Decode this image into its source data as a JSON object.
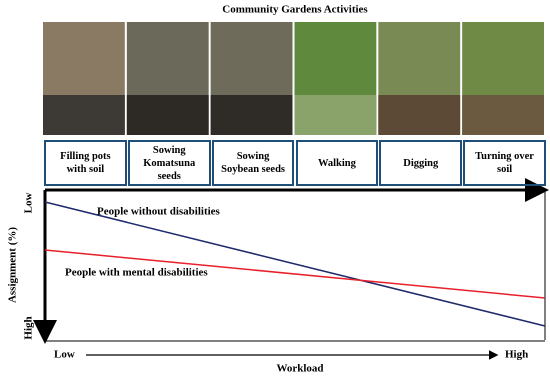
{
  "title": "Community Gardens Activities",
  "activities": [
    "Filling pots with soil",
    "Sowing Komatsuna seeds",
    "Sowing Soybean seeds",
    "Walking",
    "Digging",
    "Turning over soil"
  ],
  "y_axis": {
    "label": "Assignment (%)",
    "low": "Low",
    "high": "High"
  },
  "x_axis": {
    "label": "Workload",
    "low": "Low",
    "high": "High"
  },
  "lines": [
    {
      "label": "People without disabilities",
      "color": "#1f2a6b"
    },
    {
      "label": "People with mental disabilities",
      "color": "#e8202a"
    }
  ]
}
